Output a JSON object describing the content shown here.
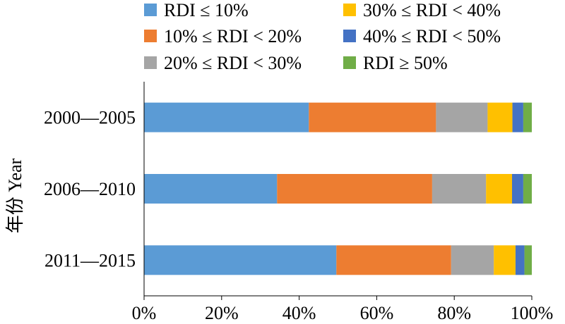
{
  "chart_data": {
    "type": "bar",
    "orientation": "horizontal",
    "stacked": true,
    "percent": true,
    "title": "",
    "xlabel": "",
    "ylabel": "年份 Year",
    "xlim": [
      0,
      100
    ],
    "xticks": [
      "0%",
      "20%",
      "40%",
      "60%",
      "80%",
      "100%"
    ],
    "grid": false,
    "legend_position": "top",
    "categories": [
      "2000—2005",
      "2006—2010",
      "2011—2015"
    ],
    "series": [
      {
        "name": "RDI ≤ 10%",
        "color": "#5b9bd5",
        "values": [
          42.5,
          34.3,
          49.6
        ]
      },
      {
        "name": "10% ≤ RDI < 20%",
        "color": "#ed7d31",
        "values": [
          32.8,
          40.0,
          29.6
        ]
      },
      {
        "name": "20% ≤ RDI < 30%",
        "color": "#a5a5a5",
        "values": [
          13.3,
          13.9,
          11.0
        ]
      },
      {
        "name": "30% ≤ RDI < 40%",
        "color": "#ffc000",
        "values": [
          6.4,
          6.7,
          5.6
        ]
      },
      {
        "name": "40% ≤ RDI < 50%",
        "color": "#4472c4",
        "values": [
          2.8,
          2.9,
          2.3
        ]
      },
      {
        "name": "RDI ≥ 50%",
        "color": "#70ad47",
        "values": [
          2.2,
          2.2,
          1.9
        ]
      }
    ]
  }
}
